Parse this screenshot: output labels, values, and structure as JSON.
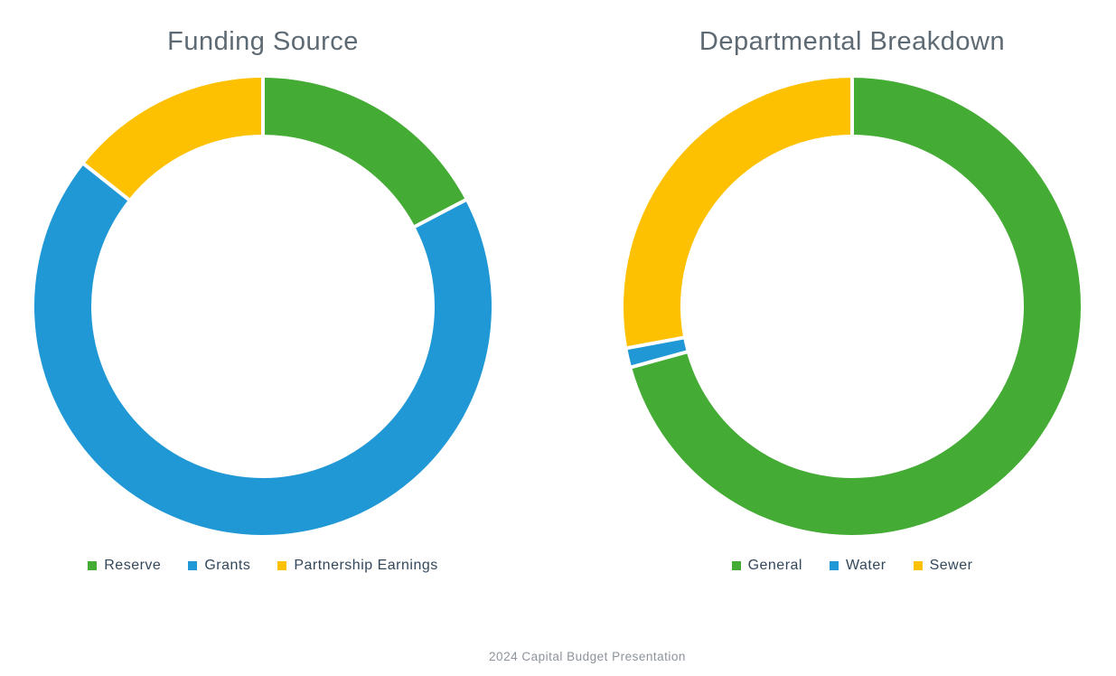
{
  "footer": {
    "text": "2024 Capital Budget Presentation"
  },
  "colors": {
    "green": "#44ab34",
    "blue": "#2098d5",
    "yellow": "#fdc101",
    "title_text": "#5d6a73",
    "legend_text": "#33475b",
    "footer_text": "#8d939b",
    "separator": "#ffffff"
  },
  "chart_data": [
    {
      "type": "pie",
      "subtype": "donut",
      "title": "Funding Source",
      "legend_position": "bottom",
      "inner_radius_ratio": 0.75,
      "start_at_top": true,
      "direction": "clockwise",
      "slices": [
        {
          "label": "Reserve",
          "color": "#44ab34",
          "percent": 17.3,
          "start_angle": 0,
          "end_angle": 62.3
        },
        {
          "label": "Grants",
          "color": "#2098d5",
          "percent": 68.4,
          "start_angle": 62.3,
          "end_angle": 308.5
        },
        {
          "label": "Partnership Earnings",
          "color": "#fdc101",
          "percent": 14.3,
          "start_angle": 308.5,
          "end_angle": 360
        }
      ]
    },
    {
      "type": "pie",
      "subtype": "donut",
      "title": "Departmental Breakdown",
      "legend_position": "bottom",
      "inner_radius_ratio": 0.75,
      "start_at_top": true,
      "direction": "clockwise",
      "slices": [
        {
          "label": "General",
          "color": "#44ab34",
          "percent": 70.7,
          "start_angle": 0,
          "end_angle": 254.6
        },
        {
          "label": "Water",
          "color": "#2098d5",
          "percent": 1.4,
          "start_angle": 254.6,
          "end_angle": 259.5
        },
        {
          "label": "Sewer",
          "color": "#fdc101",
          "percent": 27.9,
          "start_angle": 259.5,
          "end_angle": 360
        }
      ]
    }
  ]
}
